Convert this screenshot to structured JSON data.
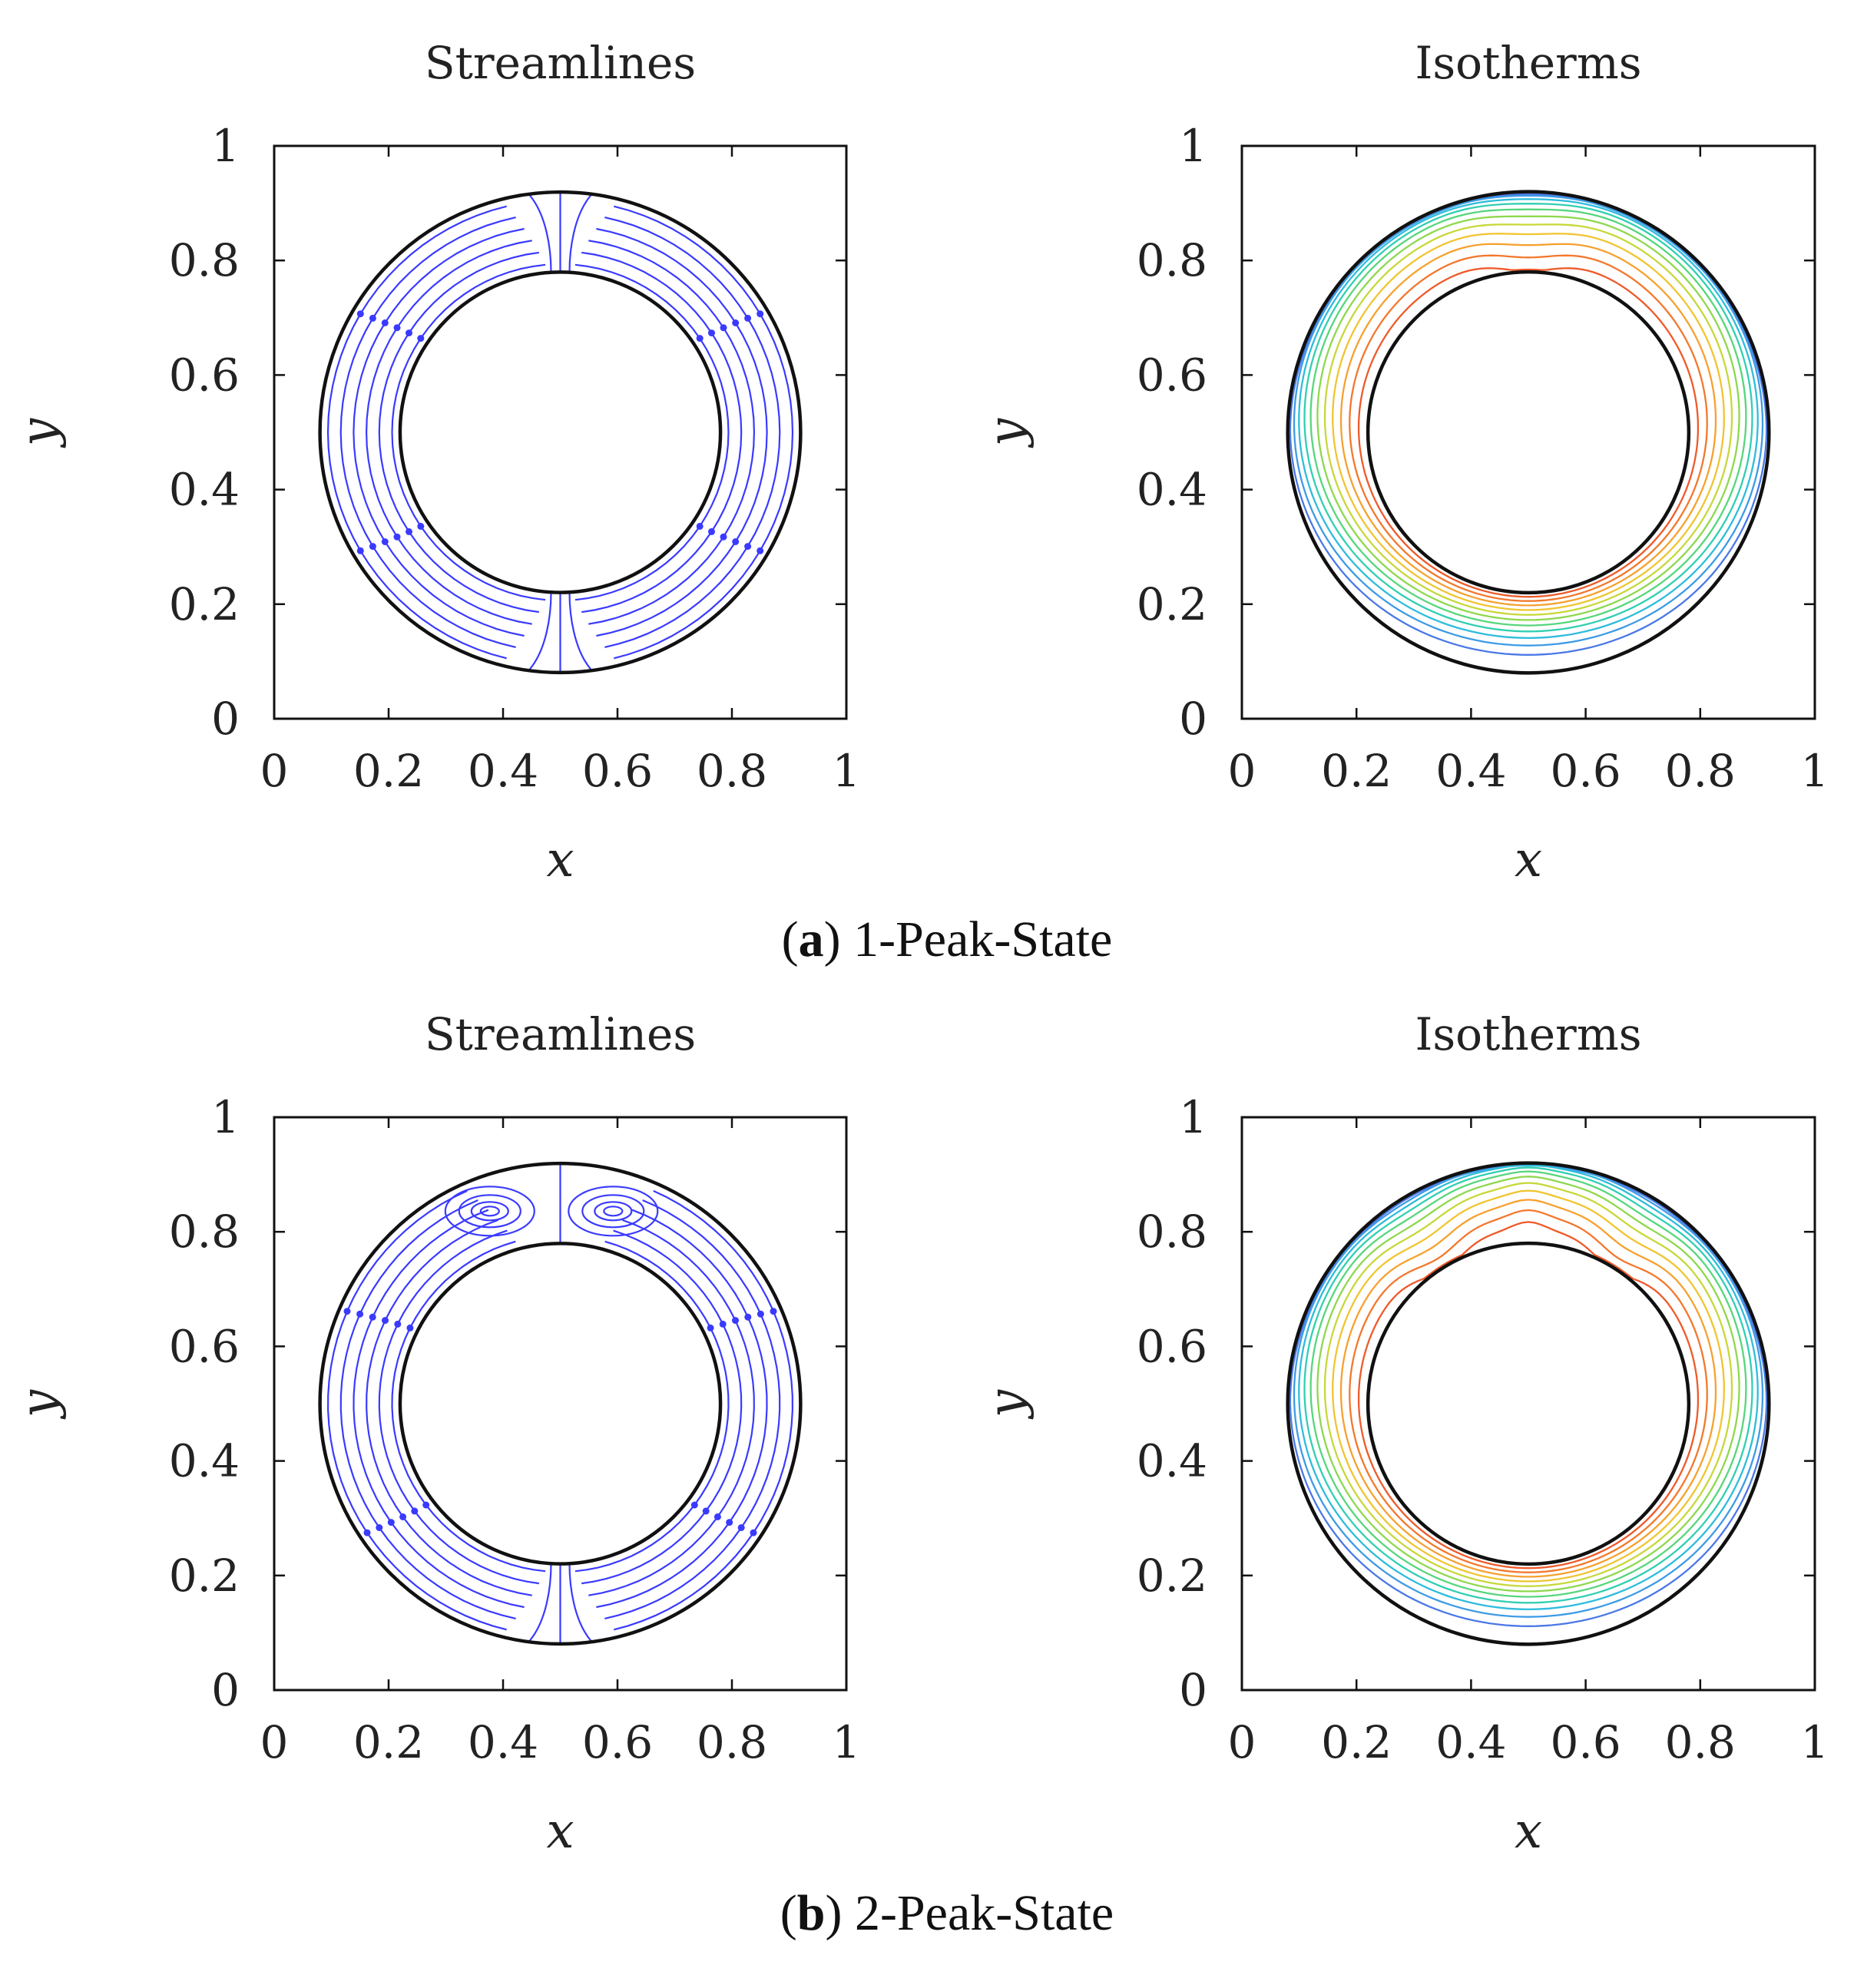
{
  "figure": {
    "captions": [
      {
        "open": "(",
        "letter": "a",
        "close": ")",
        "text": " 1-Peak-State"
      },
      {
        "open": "(",
        "letter": "b",
        "close": ")",
        "text": " 2-Peak-State"
      }
    ]
  },
  "chart_data": [
    {
      "type": "streamlines",
      "row": 0,
      "col": 0,
      "title": "Streamlines",
      "xlabel": "x",
      "ylabel": "y",
      "xlim": [
        0,
        1
      ],
      "ylim": [
        0,
        1
      ],
      "xticks": [
        "0",
        "0.2",
        "0.4",
        "0.6",
        "0.8",
        "1"
      ],
      "yticks": [
        "0",
        "0.2",
        "0.4",
        "0.6",
        "0.8",
        "1"
      ],
      "center": [
        0.5,
        0.5
      ],
      "inner_radius": 0.28,
      "outer_radius": 0.42,
      "line_color": "#3a3aff",
      "state": "1-Peak-State",
      "secondary_cells": 0
    },
    {
      "type": "isotherms",
      "row": 0,
      "col": 1,
      "title": "Isotherms",
      "xlabel": "x",
      "ylabel": "y",
      "xlim": [
        0,
        1
      ],
      "ylim": [
        0,
        1
      ],
      "xticks": [
        "0",
        "0.2",
        "0.4",
        "0.6",
        "0.8",
        "1"
      ],
      "yticks": [
        "0",
        "0.2",
        "0.4",
        "0.6",
        "0.8",
        "1"
      ],
      "center": [
        0.5,
        0.5
      ],
      "inner_radius": 0.28,
      "outer_radius": 0.42,
      "levels": 11,
      "state": "1-Peak-State",
      "peaks": 1,
      "colors": [
        "#4a78e6",
        "#3d9be6",
        "#2fbcdc",
        "#31cfb2",
        "#57d67c",
        "#8ed84f",
        "#c7d83a",
        "#f0c531",
        "#f6a130",
        "#f3782d",
        "#ee5a2a"
      ]
    },
    {
      "type": "streamlines",
      "row": 1,
      "col": 0,
      "title": "Streamlines",
      "xlabel": "x",
      "ylabel": "y",
      "xlim": [
        0,
        1
      ],
      "ylim": [
        0,
        1
      ],
      "xticks": [
        "0",
        "0.2",
        "0.4",
        "0.6",
        "0.8",
        "1"
      ],
      "yticks": [
        "0",
        "0.2",
        "0.4",
        "0.6",
        "0.8",
        "1"
      ],
      "center": [
        0.5,
        0.5
      ],
      "inner_radius": 0.28,
      "outer_radius": 0.42,
      "line_color": "#3a3aff",
      "state": "2-Peak-State",
      "secondary_cells": 2
    },
    {
      "type": "isotherms",
      "row": 1,
      "col": 1,
      "title": "Isotherms",
      "xlabel": "x",
      "ylabel": "y",
      "xlim": [
        0,
        1
      ],
      "ylim": [
        0,
        1
      ],
      "xticks": [
        "0",
        "0.2",
        "0.4",
        "0.6",
        "0.8",
        "1"
      ],
      "yticks": [
        "0",
        "0.2",
        "0.4",
        "0.6",
        "0.8",
        "1"
      ],
      "center": [
        0.5,
        0.5
      ],
      "inner_radius": 0.28,
      "outer_radius": 0.42,
      "levels": 11,
      "state": "2-Peak-State",
      "peaks": 2,
      "colors": [
        "#4a78e6",
        "#3d9be6",
        "#2fbcdc",
        "#31cfb2",
        "#57d67c",
        "#8ed84f",
        "#c7d83a",
        "#f0c531",
        "#f6a130",
        "#f3782d",
        "#ee5a2a"
      ]
    }
  ]
}
